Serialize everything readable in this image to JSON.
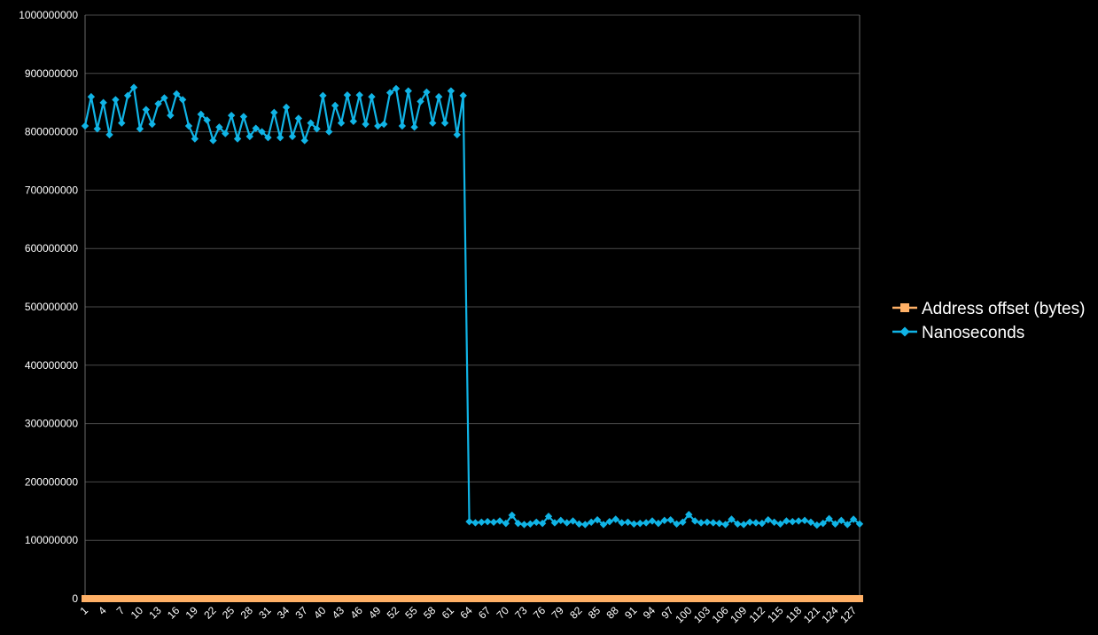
{
  "chart_data": {
    "type": "line",
    "title": "",
    "xlabel": "",
    "ylabel": "",
    "ylim": [
      0,
      1000000000
    ],
    "y_ticks": [
      0,
      100000000,
      200000000,
      300000000,
      400000000,
      500000000,
      600000000,
      700000000,
      800000000,
      900000000,
      1000000000
    ],
    "x_range": [
      1,
      128
    ],
    "x_tick_labels": [
      "1",
      "4",
      "7",
      "10",
      "13",
      "16",
      "19",
      "22",
      "25",
      "28",
      "31",
      "34",
      "37",
      "40",
      "43",
      "46",
      "49",
      "52",
      "55",
      "58",
      "61",
      "64",
      "67",
      "70",
      "73",
      "76",
      "79",
      "82",
      "85",
      "88",
      "91",
      "94",
      "97",
      "100",
      "103",
      "106",
      "109",
      "112",
      "115",
      "118",
      "121",
      "124",
      "127"
    ],
    "grid": "horizontal",
    "legend_position": "right",
    "series": [
      {
        "name": "Address offset (bytes)",
        "color": "#ffb066",
        "marker": "square",
        "values": [
          0,
          64,
          128,
          192,
          256,
          320,
          384,
          448,
          512,
          576,
          640,
          704,
          768,
          832,
          896,
          960,
          1024,
          1088,
          1152,
          1216,
          1280,
          1344,
          1408,
          1472,
          1536,
          1600,
          1664,
          1728,
          1792,
          1856,
          1920,
          1984,
          2048,
          2112,
          2176,
          2240,
          2304,
          2368,
          2432,
          2496,
          2560,
          2624,
          2688,
          2752,
          2816,
          2880,
          2944,
          3008,
          3072,
          3136,
          3200,
          3264,
          3328,
          3392,
          3456,
          3520,
          3584,
          3648,
          3712,
          3776,
          3840,
          3904,
          3968,
          4032,
          4096,
          4160,
          4224,
          4288,
          4352,
          4416,
          4480,
          4544,
          4608,
          4672,
          4736,
          4800,
          4864,
          4928,
          4992,
          5056,
          5120,
          5184,
          5248,
          5312,
          5376,
          5440,
          5504,
          5568,
          5632,
          5696,
          5760,
          5824,
          5888,
          5952,
          6016,
          6080,
          6144,
          6208,
          6272,
          6336,
          6400,
          6464,
          6528,
          6592,
          6656,
          6720,
          6784,
          6848,
          6912,
          6976,
          7040,
          7104,
          7168,
          7232,
          7296,
          7360,
          7424,
          7488,
          7552,
          7616,
          7680,
          7744,
          7808,
          7872,
          7936,
          8000,
          8064,
          8128
        ]
      },
      {
        "name": "Nanoseconds",
        "color": "#10b4e6",
        "marker": "diamond",
        "values": [
          810000000,
          860000000,
          805000000,
          850000000,
          795000000,
          855000000,
          815000000,
          862000000,
          876000000,
          805000000,
          838000000,
          813000000,
          848000000,
          858000000,
          828000000,
          865000000,
          855000000,
          810000000,
          788000000,
          830000000,
          820000000,
          785000000,
          808000000,
          797000000,
          828000000,
          788000000,
          826000000,
          792000000,
          806000000,
          800000000,
          790000000,
          833000000,
          790000000,
          842000000,
          792000000,
          823000000,
          785000000,
          815000000,
          805000000,
          862000000,
          800000000,
          845000000,
          815000000,
          863000000,
          818000000,
          863000000,
          813000000,
          860000000,
          810000000,
          813000000,
          867000000,
          874000000,
          810000000,
          870000000,
          808000000,
          852000000,
          868000000,
          815000000,
          860000000,
          815000000,
          870000000,
          795000000,
          862000000,
          132000000,
          130000000,
          131000000,
          132000000,
          131000000,
          133000000,
          129000000,
          143000000,
          129000000,
          127000000,
          128000000,
          131000000,
          129000000,
          141000000,
          130000000,
          134000000,
          130000000,
          133000000,
          128000000,
          127000000,
          131000000,
          135000000,
          127000000,
          132000000,
          136000000,
          130000000,
          131000000,
          128000000,
          129000000,
          130000000,
          133000000,
          129000000,
          134000000,
          135000000,
          128000000,
          131000000,
          144000000,
          133000000,
          130000000,
          131000000,
          130000000,
          129000000,
          127000000,
          136000000,
          128000000,
          127000000,
          131000000,
          130000000,
          129000000,
          135000000,
          131000000,
          128000000,
          133000000,
          132000000,
          133000000,
          134000000,
          131000000,
          126000000,
          129000000,
          137000000,
          128000000,
          134000000,
          127000000,
          136000000,
          128000000
        ]
      }
    ]
  }
}
